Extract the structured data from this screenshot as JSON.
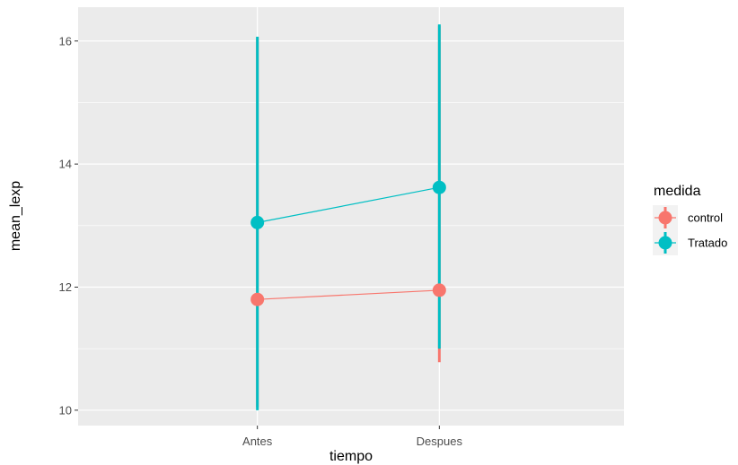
{
  "chart_data": {
    "type": "line",
    "xlabel": "tiempo",
    "ylabel": "mean_lexp",
    "categories": [
      "Antes",
      "Despues"
    ],
    "ylim": [
      9.75,
      16.55
    ],
    "yticks": [
      10,
      12,
      14,
      16
    ],
    "grid": true,
    "legend": {
      "title": "medida",
      "position": "right"
    },
    "series": [
      {
        "name": "control",
        "color": "#F8766D",
        "values": [
          11.8,
          11.95
        ],
        "error_low": [
          10.05,
          10.78
        ],
        "error_high": [
          16.05,
          16.25
        ]
      },
      {
        "name": "Tratado",
        "color": "#00BFC4",
        "values": [
          13.05,
          13.62
        ],
        "error_low": [
          10.0,
          11.0
        ],
        "error_high": [
          16.07,
          16.27
        ]
      }
    ]
  }
}
